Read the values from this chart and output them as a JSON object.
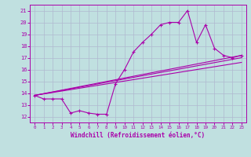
{
  "title": "",
  "xlabel": "Windchill (Refroidissement éolien,°C)",
  "ylabel": "",
  "bg_color": "#c0e0e0",
  "grid_color": "#b0b8d0",
  "line_color": "#aa00aa",
  "xlim": [
    -0.5,
    23.5
  ],
  "ylim": [
    11.5,
    21.5
  ],
  "xticks": [
    0,
    1,
    2,
    3,
    4,
    5,
    6,
    7,
    8,
    9,
    10,
    11,
    12,
    13,
    14,
    15,
    16,
    17,
    18,
    19,
    20,
    21,
    22,
    23
  ],
  "yticks": [
    12,
    13,
    14,
    15,
    16,
    17,
    18,
    19,
    20,
    21
  ],
  "line1_x": [
    0,
    1,
    2,
    3,
    4,
    5,
    6,
    7,
    8,
    9,
    10,
    11,
    12,
    13,
    14,
    15,
    16,
    17,
    18,
    19,
    20,
    21,
    22,
    23
  ],
  "line1_y": [
    13.8,
    13.5,
    13.5,
    13.5,
    12.3,
    12.5,
    12.3,
    12.2,
    12.2,
    14.8,
    16.0,
    17.5,
    18.3,
    19.0,
    19.8,
    20.0,
    20.0,
    21.0,
    18.3,
    19.8,
    17.8,
    17.2,
    17.0,
    17.2
  ],
  "line2_x": [
    0,
    23
  ],
  "line2_y": [
    13.8,
    17.2
  ],
  "line3_x": [
    0,
    23
  ],
  "line3_y": [
    13.8,
    17.0
  ],
  "line4_x": [
    0,
    23
  ],
  "line4_y": [
    13.8,
    16.6
  ]
}
